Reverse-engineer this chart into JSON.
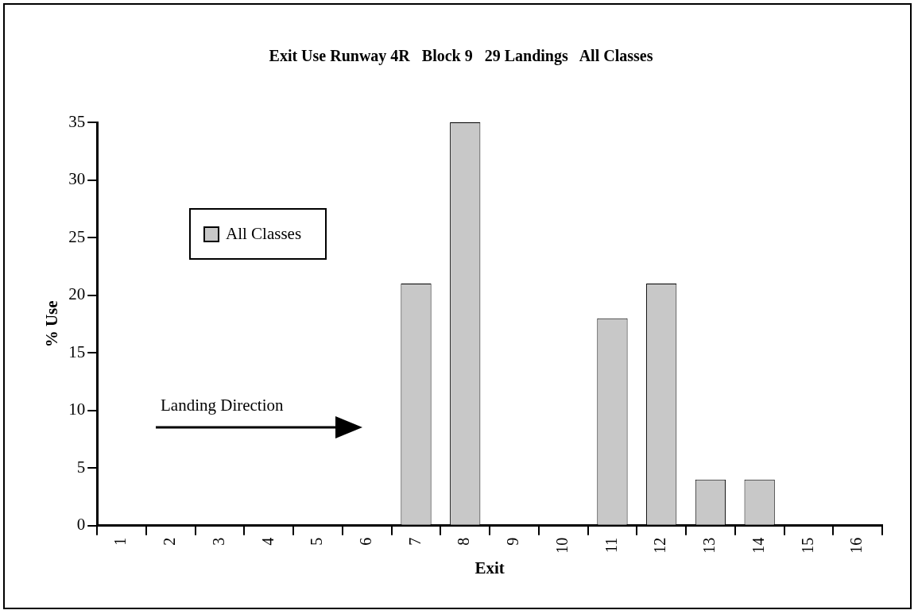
{
  "chart_data": {
    "type": "bar",
    "title": "Exit Use Runway 4R   Block 9   29 Landings   All Classes",
    "xlabel": "Exit",
    "ylabel": "% Use",
    "categories": [
      "1",
      "2",
      "3",
      "4",
      "5",
      "6",
      "7",
      "8",
      "9",
      "10",
      "11",
      "12",
      "13",
      "14",
      "15",
      "16"
    ],
    "series": [
      {
        "name": "All Classes",
        "color": "#c8c8c8",
        "values": [
          0,
          0,
          0,
          0,
          0,
          0,
          21,
          35,
          0,
          0,
          18,
          21,
          4,
          4,
          0,
          0
        ]
      }
    ],
    "ylim": [
      0,
      35
    ],
    "yticks": [
      0,
      5,
      10,
      15,
      20,
      25,
      30,
      35
    ],
    "grid": false,
    "legend": "top left",
    "annotations": [
      "Landing Direction"
    ]
  }
}
